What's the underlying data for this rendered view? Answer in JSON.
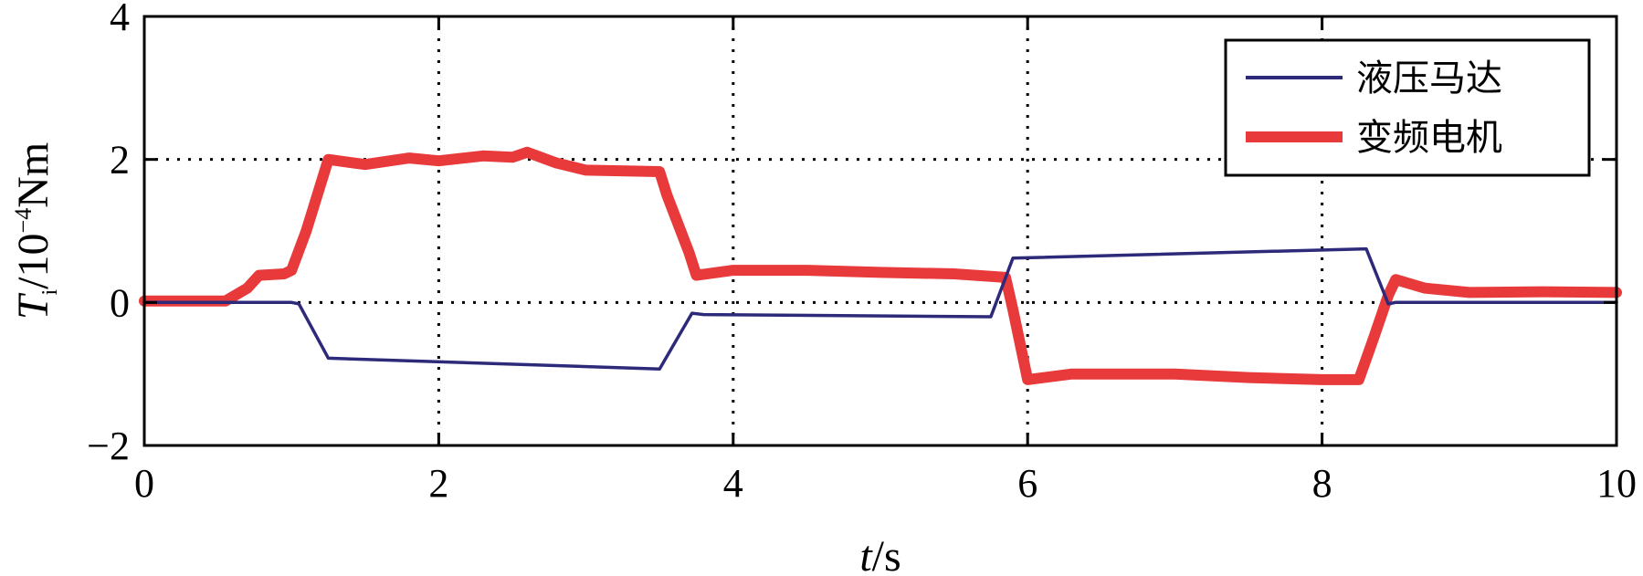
{
  "chart_data": {
    "type": "line",
    "xlabel": {
      "italic": "t",
      "rest": "/s"
    },
    "ylabel": {
      "italic": "T",
      "subscript": "i",
      "rest": "/10",
      "exponent": "−4",
      "unit": "Nm"
    },
    "xlim": [
      0,
      10
    ],
    "ylim": [
      -2,
      4
    ],
    "xticks": [
      0,
      2,
      4,
      6,
      8,
      10
    ],
    "xtick_labels": [
      "0",
      "2",
      "4",
      "6",
      "8",
      "10"
    ],
    "yticks": [
      -2,
      0,
      2,
      4
    ],
    "ytick_labels": [
      "−2",
      "0",
      "2",
      "4"
    ],
    "grid": "dotted",
    "legend_position": "top-right",
    "series": [
      {
        "name": "液压马达",
        "color": "#2e2a7a",
        "x": [
          0,
          0.5,
          1.0,
          1.05,
          1.25,
          3.5,
          3.72,
          3.8,
          5.75,
          5.9,
          8.3,
          8.45,
          8.5,
          10
        ],
        "y": [
          0,
          0,
          0,
          -0.02,
          -0.78,
          -0.93,
          -0.15,
          -0.17,
          -0.2,
          0.62,
          0.75,
          -0.02,
          0,
          0
        ]
      },
      {
        "name": "变频电机",
        "color": "#e8393b",
        "x": [
          0,
          0.55,
          0.7,
          0.78,
          0.95,
          1.0,
          1.1,
          1.25,
          1.5,
          1.8,
          2.0,
          2.3,
          2.5,
          2.6,
          2.8,
          3.0,
          3.5,
          3.55,
          3.7,
          3.75,
          4.0,
          4.5,
          5.0,
          5.5,
          5.85,
          5.9,
          6.0,
          6.3,
          7.0,
          7.5,
          8.0,
          8.25,
          8.35,
          8.45,
          8.5,
          8.7,
          9.0,
          9.5,
          10
        ],
        "y": [
          0.02,
          0.02,
          0.2,
          0.38,
          0.4,
          0.45,
          1.0,
          2.0,
          1.93,
          2.02,
          1.98,
          2.05,
          2.03,
          2.1,
          1.95,
          1.85,
          1.83,
          1.5,
          0.7,
          0.38,
          0.45,
          0.45,
          0.42,
          0.4,
          0.35,
          -0.1,
          -1.08,
          -1.0,
          -1.0,
          -1.05,
          -1.08,
          -1.08,
          -0.5,
          0.1,
          0.32,
          0.2,
          0.14,
          0.15,
          0.14
        ]
      }
    ]
  }
}
